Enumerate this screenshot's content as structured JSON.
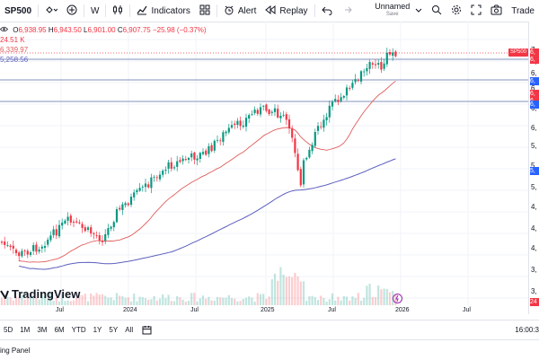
{
  "toolbar": {
    "symbol": "SP500",
    "interval": "W",
    "indicators_label": "Indicators",
    "alert_label": "Alert",
    "replay_label": "Replay",
    "layout_name": "Unnamed",
    "layout_status": "Save",
    "trade_label": "Trade"
  },
  "legend": {
    "ohlc_o_label": "O",
    "ohlc_o": "6,938.95",
    "ohlc_h_label": "H",
    "ohlc_h": "6,943.50",
    "ohlc_l_label": "L",
    "ohlc_l": "6,901.00",
    "ohlc_c_label": "C",
    "ohlc_c": "6,907.75",
    "change": "−25.98 (−0.37%)",
    "volume": "24.51 K",
    "ma1": "6,339.97",
    "ma2": "5,258.56"
  },
  "series_badge": "SP500",
  "price_axis": {
    "ticks": [
      "7,",
      "6,",
      "6,",
      "6,",
      "6,",
      "6,",
      "5,",
      "5,",
      "5,",
      "4,",
      "4,",
      "4,",
      "3,",
      "3,"
    ],
    "badges": [
      "6,",
      "6,",
      "6,",
      "6,",
      "6,",
      "6,",
      "5,",
      "24"
    ]
  },
  "time_axis": [
    "Jul",
    "2024",
    "Jul",
    "2025",
    "Jul",
    "2026",
    "Jul"
  ],
  "range_buttons": [
    "5D",
    "1M",
    "3M",
    "6M",
    "YTD",
    "1Y",
    "5Y",
    "All"
  ],
  "clock": "16:00:3",
  "bottom_panel_label": "ing Panel",
  "brand": "TradingView",
  "colors": {
    "up": "#089981",
    "down": "#f23645",
    "ma_short": "#e05c5c",
    "ma_long": "#5b5fbd",
    "hline": "#2962ff"
  }
}
